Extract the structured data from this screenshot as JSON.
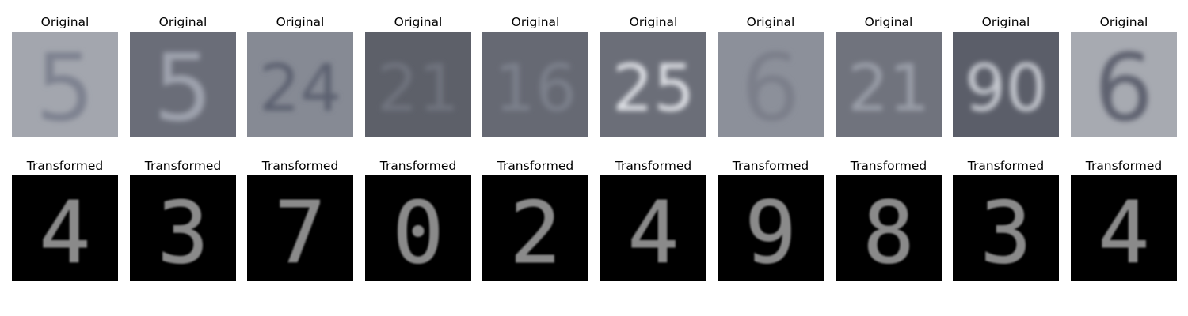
{
  "figure": {
    "rows": [
      {
        "row_title": "Original",
        "panels": [
          {
            "title": "Original",
            "digit": "5",
            "bg": "#a3a6ae",
            "fg": "#7e8290",
            "kind": "svhn"
          },
          {
            "title": "Original",
            "digit": "5",
            "bg": "#6a6d78",
            "fg": "#9ea2ad",
            "kind": "svhn"
          },
          {
            "title": "Original",
            "digit": "24",
            "bg": "#868a94",
            "fg": "#5c6070",
            "kind": "svhn"
          },
          {
            "title": "Original",
            "digit": "21",
            "bg": "#5d6069",
            "fg": "#70737e",
            "kind": "svhn"
          },
          {
            "title": "Original",
            "digit": "16",
            "bg": "#666973",
            "fg": "#7c808b",
            "kind": "svhn"
          },
          {
            "title": "Original",
            "digit": "25",
            "bg": "#6b6e78",
            "fg": "#dfe1e6",
            "kind": "svhn"
          },
          {
            "title": "Original",
            "digit": "6",
            "bg": "#8c909a",
            "fg": "#7b7f8a",
            "kind": "svhn"
          },
          {
            "title": "Original",
            "digit": "21",
            "bg": "#70737d",
            "fg": "#9a9ea8",
            "kind": "svhn"
          },
          {
            "title": "Original",
            "digit": "90",
            "bg": "#5b5e69",
            "fg": "#c6c9d0",
            "kind": "svhn"
          },
          {
            "title": "Original",
            "digit": "6",
            "bg": "#a7aab1",
            "fg": "#5e6270",
            "kind": "svhn"
          }
        ]
      },
      {
        "row_title": "Transformed",
        "panels": [
          {
            "title": "Transformed",
            "digit": "4",
            "bg": "#000000",
            "fg": "#8a8a8a",
            "kind": "mnist"
          },
          {
            "title": "Transformed",
            "digit": "3",
            "bg": "#000000",
            "fg": "#8a8a8a",
            "kind": "mnist"
          },
          {
            "title": "Transformed",
            "digit": "7",
            "bg": "#000000",
            "fg": "#8a8a8a",
            "kind": "mnist"
          },
          {
            "title": "Transformed",
            "digit": "0",
            "bg": "#000000",
            "fg": "#8a8a8a",
            "kind": "mnist"
          },
          {
            "title": "Transformed",
            "digit": "2",
            "bg": "#000000",
            "fg": "#8a8a8a",
            "kind": "mnist"
          },
          {
            "title": "Transformed",
            "digit": "4",
            "bg": "#000000",
            "fg": "#8a8a8a",
            "kind": "mnist"
          },
          {
            "title": "Transformed",
            "digit": "9",
            "bg": "#000000",
            "fg": "#8a8a8a",
            "kind": "mnist"
          },
          {
            "title": "Transformed",
            "digit": "8",
            "bg": "#000000",
            "fg": "#8a8a8a",
            "kind": "mnist"
          },
          {
            "title": "Transformed",
            "digit": "3",
            "bg": "#000000",
            "fg": "#8a8a8a",
            "kind": "mnist"
          },
          {
            "title": "Transformed",
            "digit": "4",
            "bg": "#000000",
            "fg": "#8a8a8a",
            "kind": "mnist"
          }
        ]
      }
    ]
  }
}
